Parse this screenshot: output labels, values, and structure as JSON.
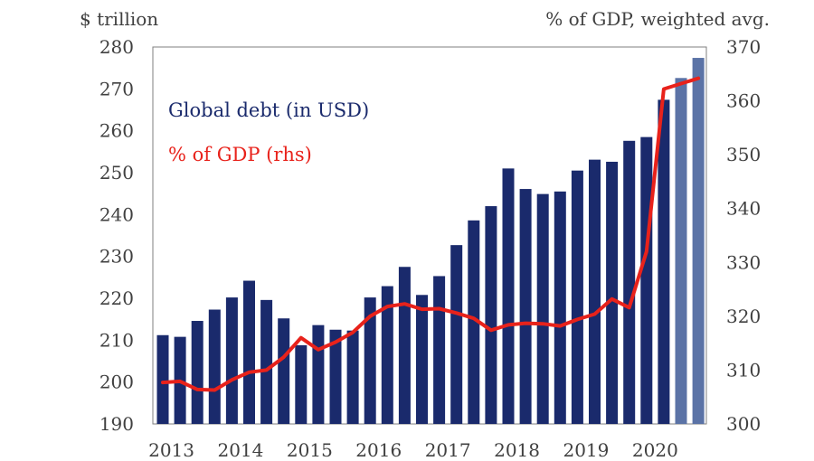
{
  "chart_data": {
    "type": "bar",
    "title": "",
    "left_unit": "$ trillion",
    "right_unit": "% of GDP, weighted avg.",
    "ylim": [
      190,
      280
    ],
    "y2lim": [
      300,
      370
    ],
    "y_ticks": [
      190,
      200,
      210,
      220,
      230,
      240,
      250,
      260,
      270,
      280
    ],
    "y2_ticks": [
      300,
      310,
      320,
      330,
      340,
      350,
      360,
      370
    ],
    "x_tick_labels": [
      "2013",
      "2014",
      "2015",
      "2016",
      "2017",
      "2018",
      "2019",
      "2020"
    ],
    "legend": {
      "bar_label": "Global debt (in USD)",
      "line_label": "% of GDP (rhs)"
    },
    "colors": {
      "bar": "#1a2a6c",
      "bar_estimate": "#5b73a6",
      "line": "#e8221b",
      "text": "#404040"
    },
    "categories": [
      "2013Q1",
      "2013Q2",
      "2013Q3",
      "2013Q4",
      "2014Q1",
      "2014Q2",
      "2014Q3",
      "2014Q4",
      "2015Q1",
      "2015Q2",
      "2015Q3",
      "2015Q4",
      "2016Q1",
      "2016Q2",
      "2016Q3",
      "2016Q4",
      "2017Q1",
      "2017Q2",
      "2017Q3",
      "2017Q4",
      "2018Q1",
      "2018Q2",
      "2018Q3",
      "2018Q4",
      "2019Q1",
      "2019Q2",
      "2019Q3",
      "2019Q4",
      "2020Q1",
      "2020Q2",
      "2020Q3",
      "2020Q4"
    ],
    "series": [
      {
        "name": "Global debt (in USD)",
        "axis": "left",
        "kind": "bar",
        "values": [
          211.2,
          210.8,
          214.6,
          217.3,
          220.2,
          224.2,
          219.6,
          215.2,
          208.8,
          213.6,
          212.5,
          212.3,
          220.2,
          222.9,
          227.5,
          220.8,
          225.3,
          232.7,
          238.6,
          242.0,
          251.0,
          246.1,
          244.9,
          245.5,
          250.5,
          253.1,
          252.6,
          257.6,
          258.5,
          267.4,
          272.6,
          277.4
        ],
        "estimate_from_index": 30
      },
      {
        "name": "% of GDP (rhs)",
        "axis": "right",
        "kind": "line",
        "values": [
          307.7,
          307.9,
          306.4,
          306.3,
          308.2,
          309.6,
          310.0,
          312.4,
          316.0,
          313.8,
          315.2,
          317.0,
          320.0,
          321.8,
          322.3,
          321.3,
          321.4,
          320.6,
          319.6,
          317.4,
          318.4,
          318.7,
          318.6,
          318.2,
          319.4,
          320.4,
          323.2,
          321.6,
          332.0,
          362.2,
          363.2,
          364.2
        ]
      }
    ]
  }
}
